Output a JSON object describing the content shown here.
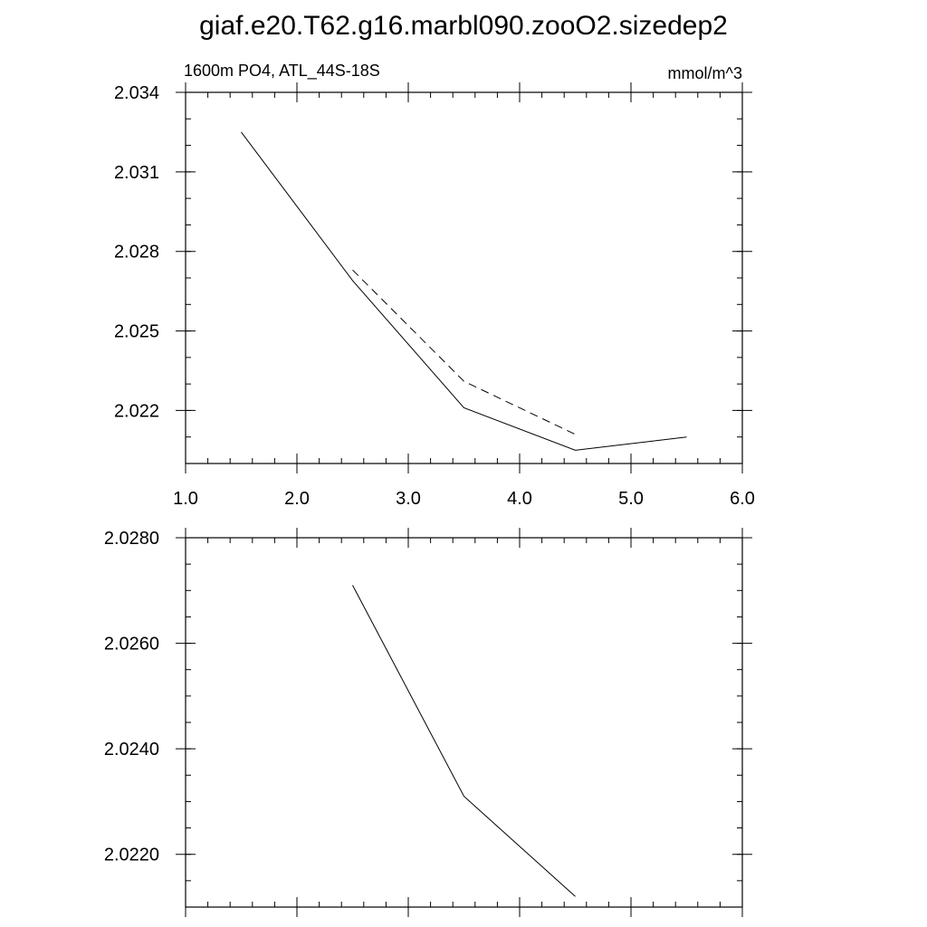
{
  "figure": {
    "title": "giaf.e20.T62.g16.marbl090.zooO2.sizedep2"
  },
  "chart_data": [
    {
      "type": "line",
      "title": "1600m PO4, ATL_44S-18S",
      "units": "mmol/m^3",
      "xlim": [
        1.0,
        6.0
      ],
      "ylim": [
        2.02,
        2.034
      ],
      "x_major_ticks": [
        1.0,
        2.0,
        3.0,
        4.0,
        5.0,
        6.0
      ],
      "x_tick_labels": [
        "1.0",
        "2.0",
        "3.0",
        "4.0",
        "5.0",
        "6.0"
      ],
      "x_minor_step": 0.2,
      "y_major_ticks": [
        2.022,
        2.025,
        2.028,
        2.031,
        2.034
      ],
      "y_tick_labels": [
        "2.022",
        "2.025",
        "2.028",
        "2.031",
        "2.034"
      ],
      "y_minor_step": 0.001,
      "series": [
        {
          "style": "solid",
          "x": [
            1.5,
            2.5,
            3.5,
            4.5,
            5.5
          ],
          "y": [
            2.0325,
            2.0269,
            2.0221,
            2.0205,
            2.021
          ]
        },
        {
          "style": "dashed",
          "x": [
            2.5,
            3.5,
            4.5
          ],
          "y": [
            2.0273,
            2.0231,
            2.0211
          ]
        }
      ]
    },
    {
      "type": "line",
      "xlim": [
        1.0,
        6.0
      ],
      "ylim": [
        2.021,
        2.028
      ],
      "x_major_ticks": [
        1.0,
        2.0,
        3.0,
        4.0,
        5.0,
        6.0
      ],
      "x_tick_labels": [],
      "x_minor_step": 0.2,
      "y_major_ticks": [
        2.022,
        2.024,
        2.026,
        2.028
      ],
      "y_tick_labels": [
        "2.0220",
        "2.0240",
        "2.0260",
        "2.0280"
      ],
      "y_minor_step": 0.0005,
      "series": [
        {
          "style": "solid",
          "x": [
            2.5,
            3.5,
            4.5
          ],
          "y": [
            2.0271,
            2.0231,
            2.0212
          ]
        }
      ]
    }
  ]
}
